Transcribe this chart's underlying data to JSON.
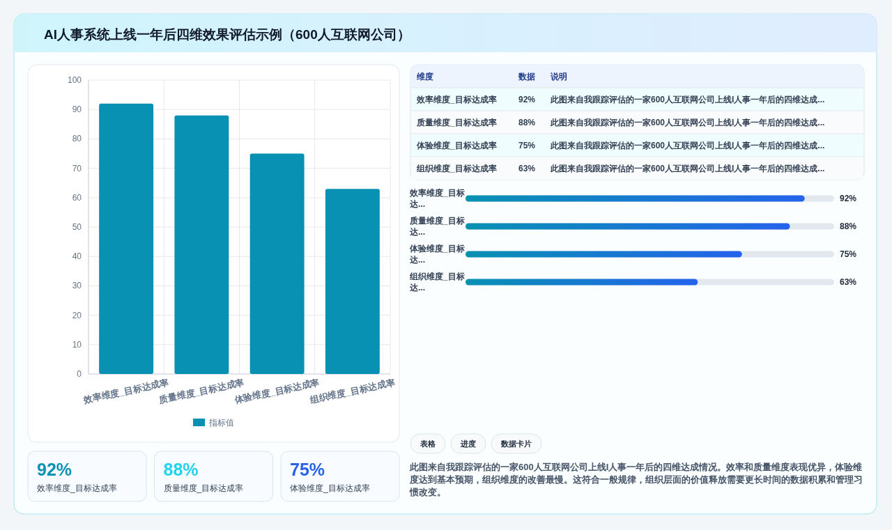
{
  "chart_data": [
    {
      "type": "bar",
      "title": "AI人事系统上线一年后四维效果评估示例（600人互联网公司）",
      "categories": [
        "效率维度_目标达成率",
        "质量维度_目标达成率",
        "体验维度_目标达成率",
        "组织维度_目标达成率"
      ],
      "series": [
        {
          "name": "指标值",
          "color": "#0891b2",
          "values": [
            92,
            88,
            75,
            63
          ]
        }
      ],
      "ylim": [
        0,
        100
      ],
      "yticks": [
        0,
        10,
        20,
        30,
        40,
        50,
        60,
        70,
        80,
        90,
        100
      ],
      "grid": true,
      "legend": "bottom"
    },
    {
      "type": "other",
      "categories": [
        "效率维度_目标达成率",
        "质量维度_目标达成率",
        "体验维度_目标达成率",
        "组织维度_目标达成率"
      ],
      "value_labels": [
        "92%",
        "88%",
        "75%",
        "63%"
      ],
      "annotations": [
        "维度",
        "数据",
        "说明",
        "此图来自我跟踪评估的一家600人互联网公司上线I人事一年后的四维达成...",
        "此图来自我跟踪评估的一家600人互联网公司上线I人事一年后的四维达成...",
        "此图来自我跟踪评估的一家600人互联网公司上线I人事一年后的四维达成...",
        "此图来自我跟踪评估的一家600人互联网公司上线I人事一年后的四维达成..."
      ]
    },
    {
      "type": "bar",
      "orientation": "horizontal",
      "categories": [
        "效率维度_目标达...",
        "质量维度_目标达...",
        "体验维度_目标达...",
        "组织维度_目标达..."
      ],
      "values": [
        92,
        88,
        75,
        63
      ],
      "value_labels": [
        "92%",
        "88%",
        "75%",
        "63%"
      ],
      "color": "#0891b2",
      "xlim": [
        0,
        100
      ],
      "tick_labels": false
    },
    {
      "type": "other",
      "categories": [
        "效率维度_目标达成率",
        "质量维度_目标达成率",
        "体验维度_目标达成率"
      ],
      "value_labels": [
        "92%",
        "88%",
        "75%"
      ],
      "colors": [
        "#0891b2",
        "#22d3ee",
        "#2563eb"
      ]
    },
    {
      "type": "other",
      "annotations": [
        "表格",
        "进度",
        "数据卡片",
        "此图来自我跟踪评估的一家600人互联网公司上线I人事一年后的四维达成情况。效率和质量维度表现优异，体验维度达到基本预期，组织维度的改善最慢。这符合一般规律，组织层面的价值释放需要更长时间的数据积累和管理习惯改变。"
      ]
    }
  ]
}
